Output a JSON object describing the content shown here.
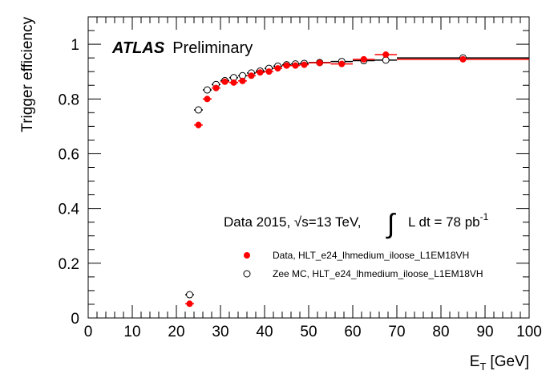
{
  "chart_data": {
    "type": "scatter",
    "experiment_label": "ATLAS",
    "status_label": "Preliminary",
    "xlabel_main": "E",
    "xlabel_sub": "T",
    "xlabel_unit": "[GeV]",
    "ylabel": "Trigger efficiency",
    "xlim": [
      0,
      100
    ],
    "ylim": [
      0,
      1.1
    ],
    "x_ticks": [
      0,
      10,
      20,
      30,
      40,
      50,
      60,
      70,
      80,
      90,
      100
    ],
    "y_ticks": [
      0,
      0.2,
      0.4,
      0.6,
      0.8,
      1
    ],
    "y_tick_labels": [
      "0",
      "0.2",
      "0.4",
      "0.6",
      "0.8",
      "1"
    ],
    "grid": false,
    "legend_position": "bottom-right",
    "annotation": {
      "prefix": "Data 2015, ",
      "sqrt_symbol": "√",
      "sqrt_var": "s",
      "energy": "=13 TeV, ",
      "integral_symbol": "∫",
      "lumi_text": "L dt = 78 pb",
      "lumi_exp": "-1"
    },
    "series": [
      {
        "name": "Data, HLT_e24_lhmedium_iloose_L1EM18VH",
        "marker": "filled-circle",
        "color": "#ff0000",
        "points": [
          {
            "x": 23,
            "y": 0.052,
            "xerr": 1,
            "yerr": 0.006
          },
          {
            "x": 25,
            "y": 0.705,
            "xerr": 1,
            "yerr": 0.012
          },
          {
            "x": 27,
            "y": 0.8,
            "xerr": 1,
            "yerr": 0.01
          },
          {
            "x": 29,
            "y": 0.84,
            "xerr": 1,
            "yerr": 0.01
          },
          {
            "x": 31,
            "y": 0.863,
            "xerr": 1,
            "yerr": 0.009
          },
          {
            "x": 33,
            "y": 0.86,
            "xerr": 1,
            "yerr": 0.009
          },
          {
            "x": 35,
            "y": 0.866,
            "xerr": 1,
            "yerr": 0.009
          },
          {
            "x": 37,
            "y": 0.885,
            "xerr": 1,
            "yerr": 0.008
          },
          {
            "x": 39,
            "y": 0.897,
            "xerr": 1,
            "yerr": 0.008
          },
          {
            "x": 41,
            "y": 0.9,
            "xerr": 1,
            "yerr": 0.008
          },
          {
            "x": 43,
            "y": 0.912,
            "xerr": 1,
            "yerr": 0.007
          },
          {
            "x": 45,
            "y": 0.922,
            "xerr": 1,
            "yerr": 0.007
          },
          {
            "x": 47,
            "y": 0.922,
            "xerr": 1,
            "yerr": 0.007
          },
          {
            "x": 49,
            "y": 0.925,
            "xerr": 1,
            "yerr": 0.007
          },
          {
            "x": 52.5,
            "y": 0.932,
            "xerr": 2.5,
            "yerr": 0.006
          },
          {
            "x": 57.5,
            "y": 0.928,
            "xerr": 2.5,
            "yerr": 0.006
          },
          {
            "x": 62.5,
            "y": 0.945,
            "xerr": 2.5,
            "yerr": 0.007
          },
          {
            "x": 67.5,
            "y": 0.962,
            "xerr": 2.5,
            "yerr": 0.008
          },
          {
            "x": 85,
            "y": 0.945,
            "xerr": 15,
            "yerr": 0.008
          }
        ]
      },
      {
        "name": "Zee MC, HLT_e24_lhmedium_iloose_L1EM18VH",
        "marker": "open-circle",
        "color": "#000000",
        "points": [
          {
            "x": 23,
            "y": 0.085,
            "xerr": 1,
            "yerr": 0.004
          },
          {
            "x": 25,
            "y": 0.76,
            "xerr": 1,
            "yerr": 0.005
          },
          {
            "x": 27,
            "y": 0.833,
            "xerr": 1,
            "yerr": 0.005
          },
          {
            "x": 29,
            "y": 0.853,
            "xerr": 1,
            "yerr": 0.004
          },
          {
            "x": 31,
            "y": 0.867,
            "xerr": 1,
            "yerr": 0.004
          },
          {
            "x": 33,
            "y": 0.878,
            "xerr": 1,
            "yerr": 0.004
          },
          {
            "x": 35,
            "y": 0.885,
            "xerr": 1,
            "yerr": 0.004
          },
          {
            "x": 37,
            "y": 0.895,
            "xerr": 1,
            "yerr": 0.004
          },
          {
            "x": 39,
            "y": 0.902,
            "xerr": 1,
            "yerr": 0.004
          },
          {
            "x": 41,
            "y": 0.912,
            "xerr": 1,
            "yerr": 0.003
          },
          {
            "x": 43,
            "y": 0.92,
            "xerr": 1,
            "yerr": 0.003
          },
          {
            "x": 45,
            "y": 0.925,
            "xerr": 1,
            "yerr": 0.003
          },
          {
            "x": 47,
            "y": 0.928,
            "xerr": 1,
            "yerr": 0.003
          },
          {
            "x": 49,
            "y": 0.93,
            "xerr": 1,
            "yerr": 0.003
          },
          {
            "x": 52.5,
            "y": 0.933,
            "xerr": 2.5,
            "yerr": 0.003
          },
          {
            "x": 57.5,
            "y": 0.937,
            "xerr": 2.5,
            "yerr": 0.003
          },
          {
            "x": 62.5,
            "y": 0.94,
            "xerr": 2.5,
            "yerr": 0.003
          },
          {
            "x": 67.5,
            "y": 0.942,
            "xerr": 2.5,
            "yerr": 0.003
          },
          {
            "x": 85,
            "y": 0.95,
            "xerr": 15,
            "yerr": 0.003
          }
        ]
      }
    ]
  }
}
